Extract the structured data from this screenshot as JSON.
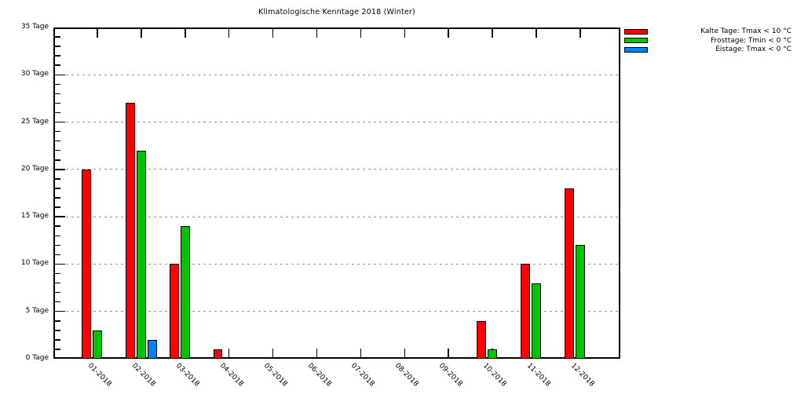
{
  "chart_data": {
    "type": "bar",
    "title": "Klimatologische Kenntage 2018 (Winter)",
    "categories": [
      "01-2018",
      "02-2018",
      "03-2018",
      "04-2018",
      "05-2018",
      "06-2018",
      "07-2018",
      "08-2018",
      "09-2018",
      "10-2018",
      "11-2018",
      "12-2018"
    ],
    "series": [
      {
        "name": "Kalte Tage: Tmax < 10 °C",
        "color": "#ff0000",
        "values": [
          20,
          27,
          10,
          1,
          0,
          0,
          0,
          0,
          0,
          4,
          10,
          18
        ]
      },
      {
        "name": "Frosttage: Tmin < 0 °C",
        "color": "#00c400",
        "values": [
          3,
          22,
          14,
          0,
          0,
          0,
          0,
          0,
          0,
          1,
          8,
          12
        ]
      },
      {
        "name": "Eistage: Tmax < 0 °C",
        "color": "#0080ff",
        "values": [
          0,
          2,
          0,
          0,
          0,
          0,
          0,
          0,
          0,
          0,
          0,
          0
        ]
      }
    ],
    "ylim": [
      0,
      35
    ],
    "ytick_step": 5,
    "ytick_minor_step": 1,
    "ytick_suffix": " Tage",
    "xlabel": "",
    "ylabel": "",
    "grid": "horizontal-dotted",
    "grid_color": "#969696",
    "legend_position": "top-right-outside",
    "background_color": "#ffffff",
    "axis_color": "#000000"
  }
}
